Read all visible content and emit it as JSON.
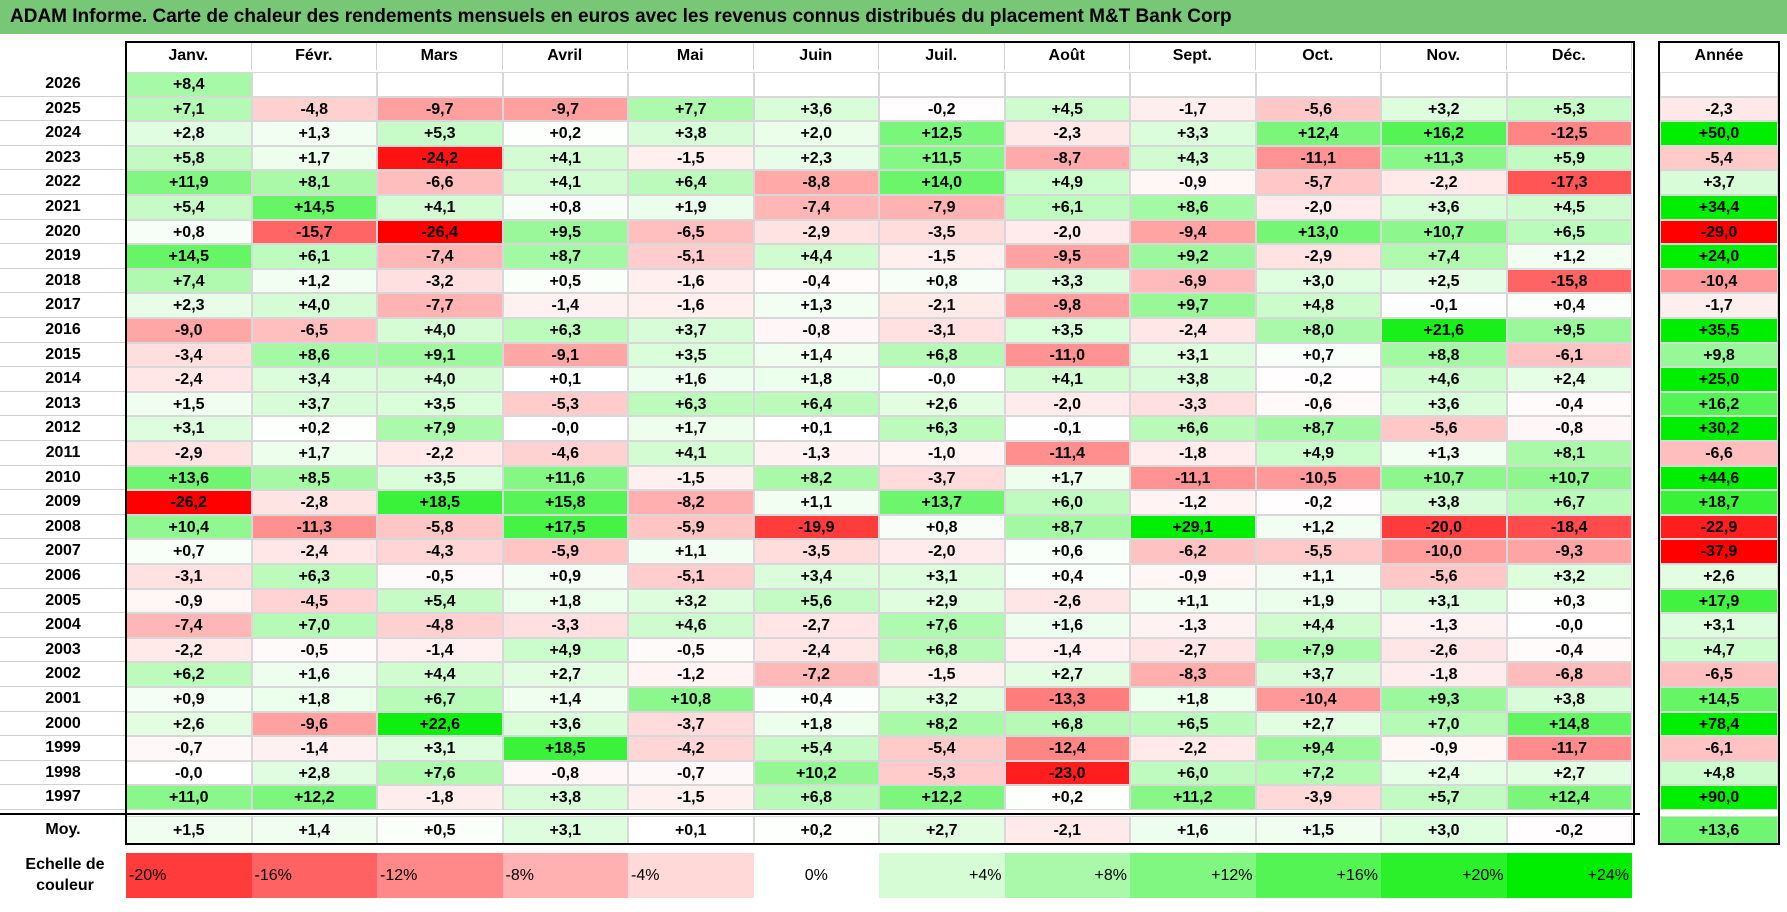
{
  "title": "ADAM Informe. Carte de chaleur des rendements mensuels en euros avec les revenus connus distribués du placement M&T Bank Corp",
  "chart_data": {
    "type": "heatmap",
    "title": "ADAM Informe. Carte de chaleur des rendements mensuels en euros avec les revenus connus distribués du placement M&T Bank Corp",
    "months": [
      "Janv.",
      "Févr.",
      "Mars",
      "Avril",
      "Mai",
      "Juin",
      "Juil.",
      "Août",
      "Sept.",
      "Oct.",
      "Nov.",
      "Déc."
    ],
    "year_header": "Année",
    "rows": [
      {
        "year": "2026",
        "values": [
          "+8,4",
          "",
          "",
          "",
          "",
          "",
          "",
          "",
          "",
          "",
          "",
          ""
        ],
        "annual": ""
      },
      {
        "year": "2025",
        "values": [
          "+7,1",
          "-4,8",
          "-9,7",
          "-9,7",
          "+7,7",
          "+3,6",
          "-0,2",
          "+4,5",
          "-1,7",
          "-5,6",
          "+3,2",
          "+5,3"
        ],
        "annual": "-2,3"
      },
      {
        "year": "2024",
        "values": [
          "+2,8",
          "+1,3",
          "+5,3",
          "+0,2",
          "+3,8",
          "+2,0",
          "+12,5",
          "-2,3",
          "+3,3",
          "+12,4",
          "+16,2",
          "-12,5"
        ],
        "annual": "+50,0"
      },
      {
        "year": "2023",
        "values": [
          "+5,8",
          "+1,7",
          "-24,2",
          "+4,1",
          "-1,5",
          "+2,3",
          "+11,5",
          "-8,7",
          "+4,3",
          "-11,1",
          "+11,3",
          "+5,9"
        ],
        "annual": "-5,4"
      },
      {
        "year": "2022",
        "values": [
          "+11,9",
          "+8,1",
          "-6,6",
          "+4,1",
          "+6,4",
          "-8,8",
          "+14,0",
          "+4,9",
          "-0,9",
          "-5,7",
          "-2,2",
          "-17,3"
        ],
        "annual": "+3,7"
      },
      {
        "year": "2021",
        "values": [
          "+5,4",
          "+14,5",
          "+4,1",
          "+0,8",
          "+1,9",
          "-7,4",
          "-7,9",
          "+6,1",
          "+8,6",
          "-2,0",
          "+3,6",
          "+4,5"
        ],
        "annual": "+34,4"
      },
      {
        "year": "2020",
        "values": [
          "+0,8",
          "-15,7",
          "-26,4",
          "+9,5",
          "-6,5",
          "-2,9",
          "-3,5",
          "-2,0",
          "-9,4",
          "+13,0",
          "+10,7",
          "+6,5"
        ],
        "annual": "-29,0"
      },
      {
        "year": "2019",
        "values": [
          "+14,5",
          "+6,1",
          "-7,4",
          "+8,7",
          "-5,1",
          "+4,4",
          "-1,5",
          "-9,5",
          "+9,2",
          "-2,9",
          "+7,4",
          "+1,2"
        ],
        "annual": "+24,0"
      },
      {
        "year": "2018",
        "values": [
          "+7,4",
          "+1,2",
          "-3,2",
          "+0,5",
          "-1,6",
          "-0,4",
          "+0,8",
          "+3,3",
          "-6,9",
          "+3,0",
          "+2,5",
          "-15,8"
        ],
        "annual": "-10,4"
      },
      {
        "year": "2017",
        "values": [
          "+2,3",
          "+4,0",
          "-7,7",
          "-1,4",
          "-1,6",
          "+1,3",
          "-2,1",
          "-9,8",
          "+9,7",
          "+4,8",
          "-0,1",
          "+0,4"
        ],
        "annual": "-1,7"
      },
      {
        "year": "2016",
        "values": [
          "-9,0",
          "-6,5",
          "+4,0",
          "+6,3",
          "+3,7",
          "-0,8",
          "-3,1",
          "+3,5",
          "-2,4",
          "+8,0",
          "+21,6",
          "+9,5"
        ],
        "annual": "+35,5"
      },
      {
        "year": "2015",
        "values": [
          "-3,4",
          "+8,6",
          "+9,1",
          "-9,1",
          "+3,5",
          "+1,4",
          "+6,8",
          "-11,0",
          "+3,1",
          "+0,7",
          "+8,8",
          "-6,1"
        ],
        "annual": "+9,8"
      },
      {
        "year": "2014",
        "values": [
          "-2,4",
          "+3,4",
          "+4,0",
          "+0,1",
          "+1,6",
          "+1,8",
          "-0,0",
          "+4,1",
          "+3,8",
          "-0,2",
          "+4,6",
          "+2,4"
        ],
        "annual": "+25,0"
      },
      {
        "year": "2013",
        "values": [
          "+1,5",
          "+3,7",
          "+3,5",
          "-5,3",
          "+6,3",
          "+6,4",
          "+2,6",
          "-2,0",
          "-3,3",
          "-0,6",
          "+3,6",
          "-0,4"
        ],
        "annual": "+16,2"
      },
      {
        "year": "2012",
        "values": [
          "+3,1",
          "+0,2",
          "+7,9",
          "-0,0",
          "+1,7",
          "+0,1",
          "+6,3",
          "-0,1",
          "+6,6",
          "+8,7",
          "-5,6",
          "-0,8"
        ],
        "annual": "+30,2"
      },
      {
        "year": "2011",
        "values": [
          "-2,9",
          "+1,7",
          "-2,2",
          "-4,6",
          "+4,1",
          "-1,3",
          "-1,0",
          "-11,4",
          "-1,8",
          "+4,9",
          "+1,3",
          "+8,1"
        ],
        "annual": "-6,6"
      },
      {
        "year": "2010",
        "values": [
          "+13,6",
          "+8,5",
          "+3,5",
          "+11,6",
          "-1,5",
          "+8,2",
          "-3,7",
          "+1,7",
          "-11,1",
          "-10,5",
          "+10,7",
          "+10,7"
        ],
        "annual": "+44,6"
      },
      {
        "year": "2009",
        "values": [
          "-26,2",
          "-2,8",
          "+18,5",
          "+15,8",
          "-8,2",
          "+1,1",
          "+13,7",
          "+6,0",
          "-1,2",
          "-0,2",
          "+3,8",
          "+6,7"
        ],
        "annual": "+18,7"
      },
      {
        "year": "2008",
        "values": [
          "+10,4",
          "-11,3",
          "-5,8",
          "+17,5",
          "-5,9",
          "-19,9",
          "+0,8",
          "+8,7",
          "+29,1",
          "+1,2",
          "-20,0",
          "-18,4"
        ],
        "annual": "-22,9"
      },
      {
        "year": "2007",
        "values": [
          "+0,7",
          "-2,4",
          "-4,3",
          "-5,9",
          "+1,1",
          "-3,5",
          "-2,0",
          "+0,6",
          "-6,2",
          "-5,5",
          "-10,0",
          "-9,3"
        ],
        "annual": "-37,9"
      },
      {
        "year": "2006",
        "values": [
          "-3,1",
          "+6,3",
          "-0,5",
          "+0,9",
          "-5,1",
          "+3,4",
          "+3,1",
          "+0,4",
          "-0,9",
          "+1,1",
          "-5,6",
          "+3,2"
        ],
        "annual": "+2,6"
      },
      {
        "year": "2005",
        "values": [
          "-0,9",
          "-4,5",
          "+5,4",
          "+1,8",
          "+3,2",
          "+5,6",
          "+2,9",
          "-2,6",
          "+1,1",
          "+1,9",
          "+3,1",
          "+0,3"
        ],
        "annual": "+17,9"
      },
      {
        "year": "2004",
        "values": [
          "-7,4",
          "+7,0",
          "-4,8",
          "-3,3",
          "+4,6",
          "-2,7",
          "+7,6",
          "+1,6",
          "-1,3",
          "+4,4",
          "-1,3",
          "-0,0"
        ],
        "annual": "+3,1"
      },
      {
        "year": "2003",
        "values": [
          "-2,2",
          "-0,5",
          "-1,4",
          "+4,9",
          "-0,5",
          "-2,4",
          "+6,8",
          "-1,4",
          "-2,7",
          "+7,9",
          "-2,6",
          "-0,4"
        ],
        "annual": "+4,7"
      },
      {
        "year": "2002",
        "values": [
          "+6,2",
          "+1,6",
          "+4,4",
          "+2,7",
          "-1,2",
          "-7,2",
          "-1,5",
          "+2,7",
          "-8,3",
          "+3,7",
          "-1,8",
          "-6,8"
        ],
        "annual": "-6,5"
      },
      {
        "year": "2001",
        "values": [
          "+0,9",
          "+1,8",
          "+6,7",
          "+1,4",
          "+10,8",
          "+0,4",
          "+3,2",
          "-13,3",
          "+1,8",
          "-10,4",
          "+9,3",
          "+3,8"
        ],
        "annual": "+14,5"
      },
      {
        "year": "2000",
        "values": [
          "+2,6",
          "-9,6",
          "+22,6",
          "+3,6",
          "-3,7",
          "+1,8",
          "+8,2",
          "+6,8",
          "+6,5",
          "+2,7",
          "+7,0",
          "+14,8"
        ],
        "annual": "+78,4"
      },
      {
        "year": "1999",
        "values": [
          "-0,7",
          "-1,4",
          "+3,1",
          "+18,5",
          "-4,2",
          "+5,4",
          "-5,4",
          "-12,4",
          "-2,2",
          "+9,4",
          "-0,9",
          "-11,7"
        ],
        "annual": "-6,1"
      },
      {
        "year": "1998",
        "values": [
          "-0,0",
          "+2,8",
          "+7,6",
          "-0,8",
          "-0,7",
          "+10,2",
          "-5,3",
          "-23,0",
          "+6,0",
          "+7,2",
          "+2,4",
          "+2,7"
        ],
        "annual": "+4,8"
      },
      {
        "year": "1997",
        "values": [
          "+11,0",
          "+12,2",
          "-1,8",
          "+3,8",
          "-1,5",
          "+6,8",
          "+12,2",
          "+0,2",
          "+11,2",
          "-3,9",
          "+5,7",
          "+12,4"
        ],
        "annual": "+90,0"
      }
    ],
    "average": {
      "label": "Moy.",
      "values": [
        "+1,5",
        "+1,4",
        "+0,5",
        "+3,1",
        "+0,1",
        "+0,2",
        "+2,7",
        "-2,1",
        "+1,6",
        "+1,5",
        "+3,0",
        "-0,2"
      ],
      "annual": "+13,6"
    },
    "scale": {
      "label": "Echelle de couleur",
      "steps": [
        {
          "label": "-20%",
          "value": -20,
          "align": "left"
        },
        {
          "label": "-16%",
          "value": -16,
          "align": "left"
        },
        {
          "label": "-12%",
          "value": -12,
          "align": "left"
        },
        {
          "label": "-8%",
          "value": -8,
          "align": "left"
        },
        {
          "label": "-4%",
          "value": -4,
          "align": "left"
        },
        {
          "label": "0%",
          "value": 0,
          "align": "center"
        },
        {
          "label": "+4%",
          "value": 4,
          "align": "right"
        },
        {
          "label": "+8%",
          "value": 8,
          "align": "right"
        },
        {
          "label": "+12%",
          "value": 12,
          "align": "right"
        },
        {
          "label": "+16%",
          "value": 16,
          "align": "right"
        },
        {
          "label": "+20%",
          "value": 20,
          "align": "right"
        },
        {
          "label": "+24%",
          "value": 24,
          "align": "right"
        }
      ]
    },
    "colors": {
      "negative": "#ff0000",
      "neutral": "#ffffff",
      "positive": "#00ee00",
      "title_bg": "#77c777"
    }
  }
}
